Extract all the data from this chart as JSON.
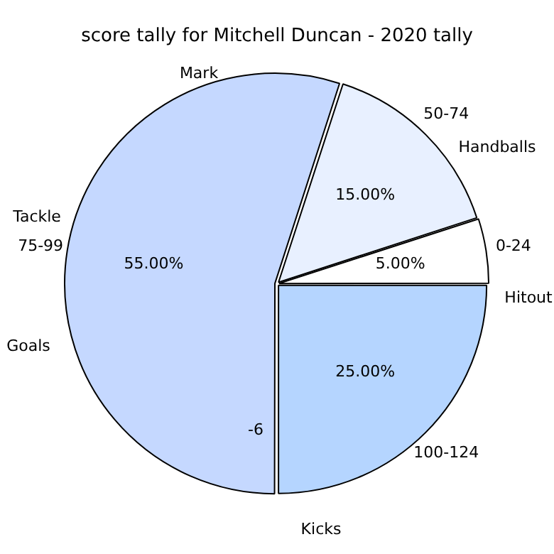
{
  "chart_data": {
    "type": "pie",
    "title": "score tally for Mitchell Duncan - 2020 tally",
    "categories": [
      "75-99",
      "50-74",
      "0-24",
      "100-124"
    ],
    "values": [
      55,
      15,
      5,
      25
    ],
    "colors": [
      "#c5d8ff",
      "#e8f0ff",
      "#ffffff",
      "#b5d5ff"
    ],
    "value_labels": [
      "55.00%",
      "15.00%",
      "5.00%",
      "25.00%"
    ],
    "annotations": [
      "Mark",
      "Handballs",
      "Hitout",
      "Kicks",
      "Goals",
      "Tackle",
      "-6"
    ],
    "legend": false
  }
}
